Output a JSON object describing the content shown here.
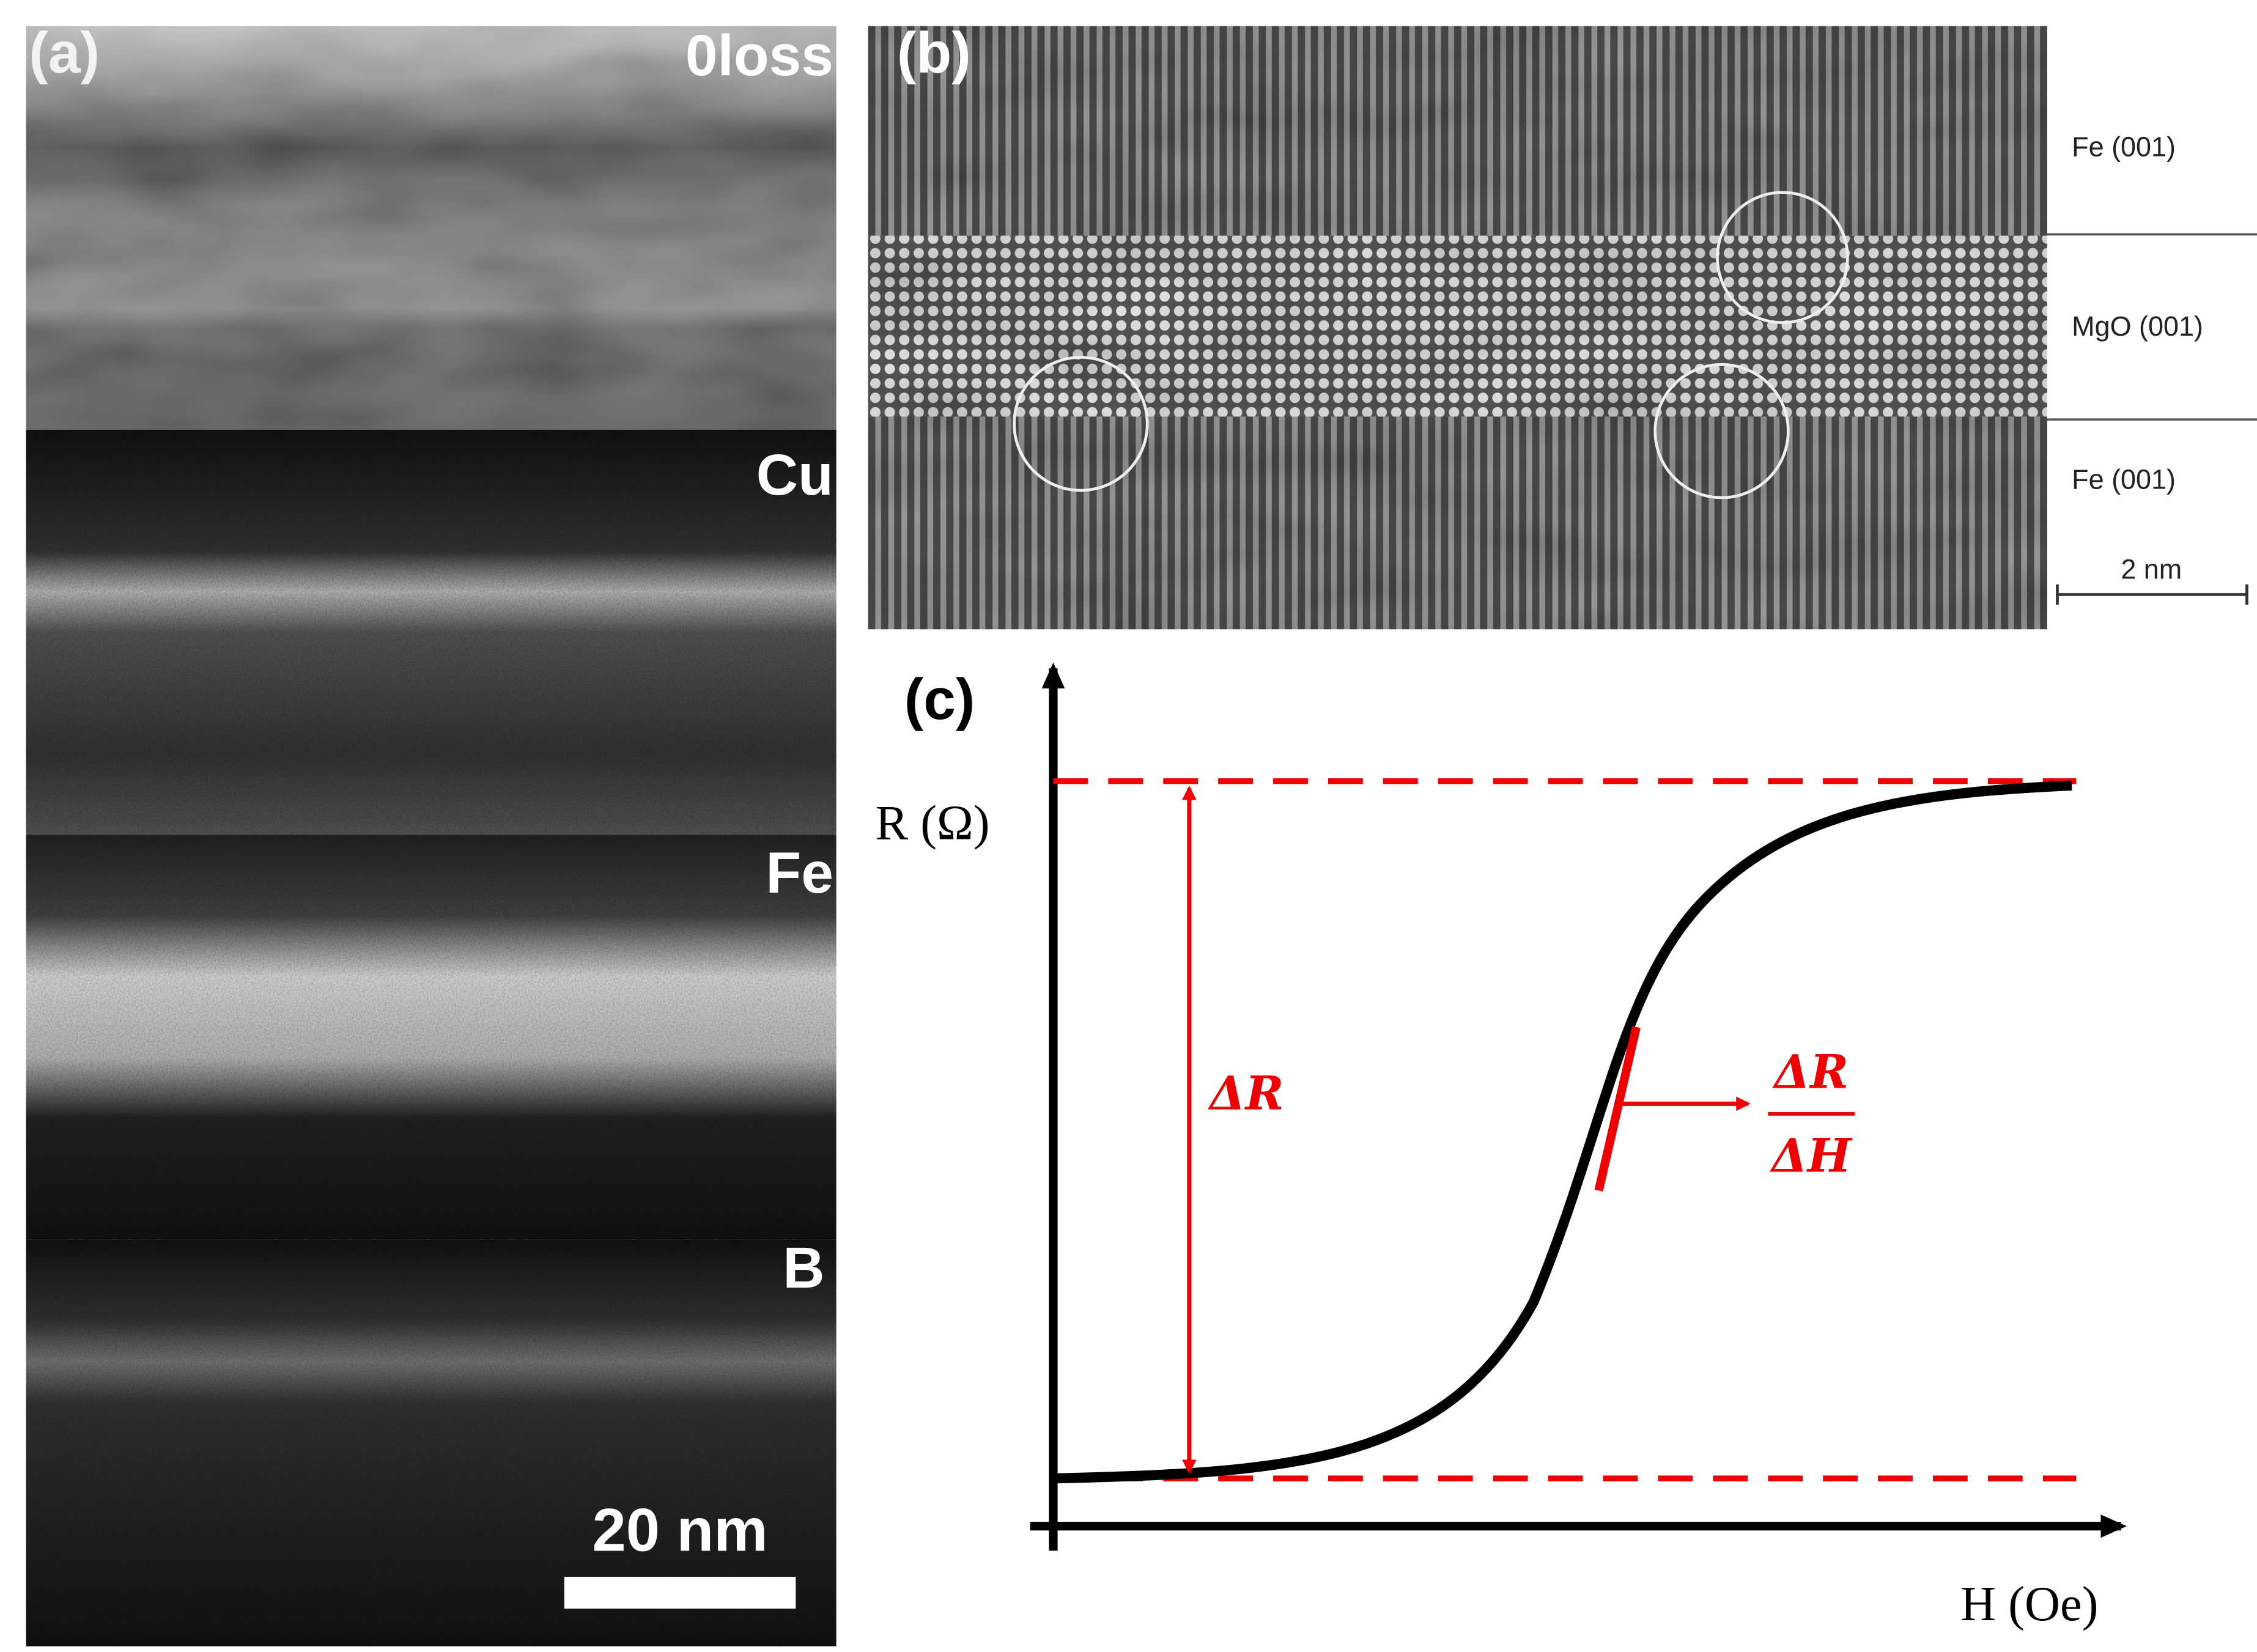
{
  "panel_a": {
    "label": "(a)",
    "maps": [
      "0loss",
      "Cu",
      "Fe",
      "B"
    ],
    "scale_bar": "20 nm"
  },
  "panel_b": {
    "label": "(b)",
    "layers": [
      "Fe (001)",
      "MgO (001)",
      "Fe (001)"
    ],
    "scale_bar": "2 nm"
  },
  "panel_c": {
    "label": "(c)",
    "y_axis": "R (Ω)",
    "x_axis": "H (Oe)",
    "delta_r": "ΔR",
    "slope_numerator": "ΔR",
    "slope_denominator": "ΔH"
  }
}
